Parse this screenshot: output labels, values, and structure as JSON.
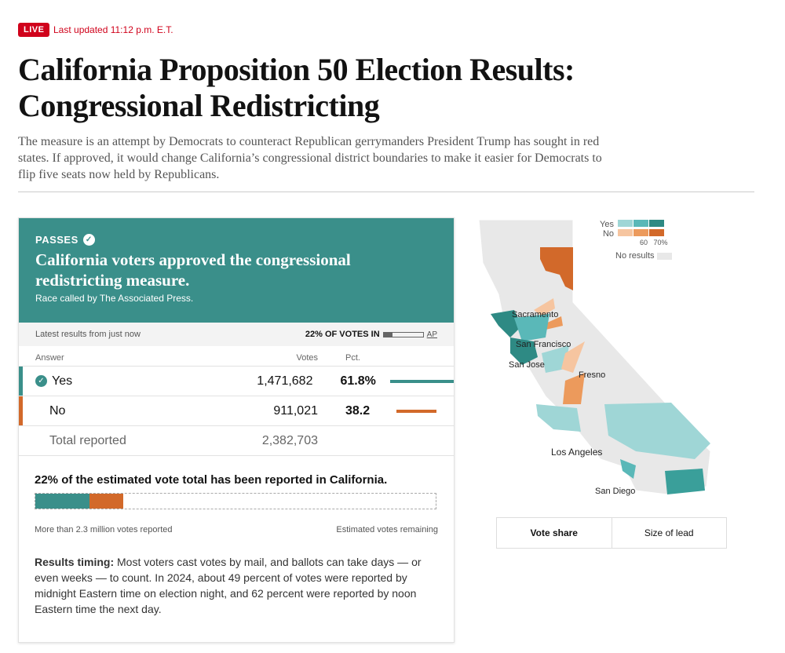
{
  "header": {
    "live_label": "LIVE",
    "updated": "Last updated 11:12 p.m. E.T.",
    "title": "California Proposition 50 Election Results: Congressional Redistricting",
    "summary": "The measure is an attempt by Democrats to counteract Republican gerrymanders President Trump has sought in red states. If approved, it would change California’s congressional district boundaries to make it easier for Democrats to flip five seats now held by Republicans."
  },
  "result": {
    "status": "PASSES",
    "headline": "California voters approved the congressional redistricting measure.",
    "called_by": "Race called by The Associated Press.",
    "latest": "Latest results from just now",
    "votes_in": "22% OF VOTES IN",
    "votes_in_pct": 22,
    "source": "AP",
    "columns": {
      "answer": "Answer",
      "votes": "Votes",
      "pct": "Pct."
    },
    "rows": [
      {
        "answer": "Yes",
        "votes": "1,471,682",
        "pct": "61.8%",
        "share": 61.8,
        "color": "#3a8f8a",
        "winner": true
      },
      {
        "answer": "No",
        "votes": "911,021",
        "pct": "38.2",
        "share": 38.2,
        "color": "#d2692a",
        "winner": false
      }
    ],
    "total_label": "Total reported",
    "total_votes": "2,382,703"
  },
  "estimate": {
    "title": "22% of the estimated vote total has been reported in California.",
    "yes_share_of_estimate": 13.6,
    "no_share_of_estimate": 8.4,
    "left_label": "More than 2.3 million votes reported",
    "right_label": "Estimated votes remaining"
  },
  "timing": {
    "label": "Results timing:",
    "text": " Most voters cast votes by mail, and ballots can take days — or even weeks — to count. In 2024, about 49 percent of votes were reported by midnight Eastern time on election night, and 62 percent were reported by noon Eastern time the next day."
  },
  "map": {
    "legend": {
      "yes": "Yes",
      "no": "No",
      "tick1": "60",
      "tick2": "70%",
      "no_results": "No results",
      "yes_colors": [
        "#9fd6d6",
        "#5ab8b8",
        "#2e8a84"
      ],
      "no_colors": [
        "#f6c5a0",
        "#ec9a5c",
        "#d2692a"
      ],
      "no_results_color": "#e8e8e8"
    },
    "cities": [
      "Sacramento",
      "San Francisco",
      "San Jose",
      "Fresno",
      "Los Angeles",
      "San Diego"
    ]
  },
  "toggle": {
    "vote_share": "Vote share",
    "size_of_lead": "Size of lead"
  }
}
